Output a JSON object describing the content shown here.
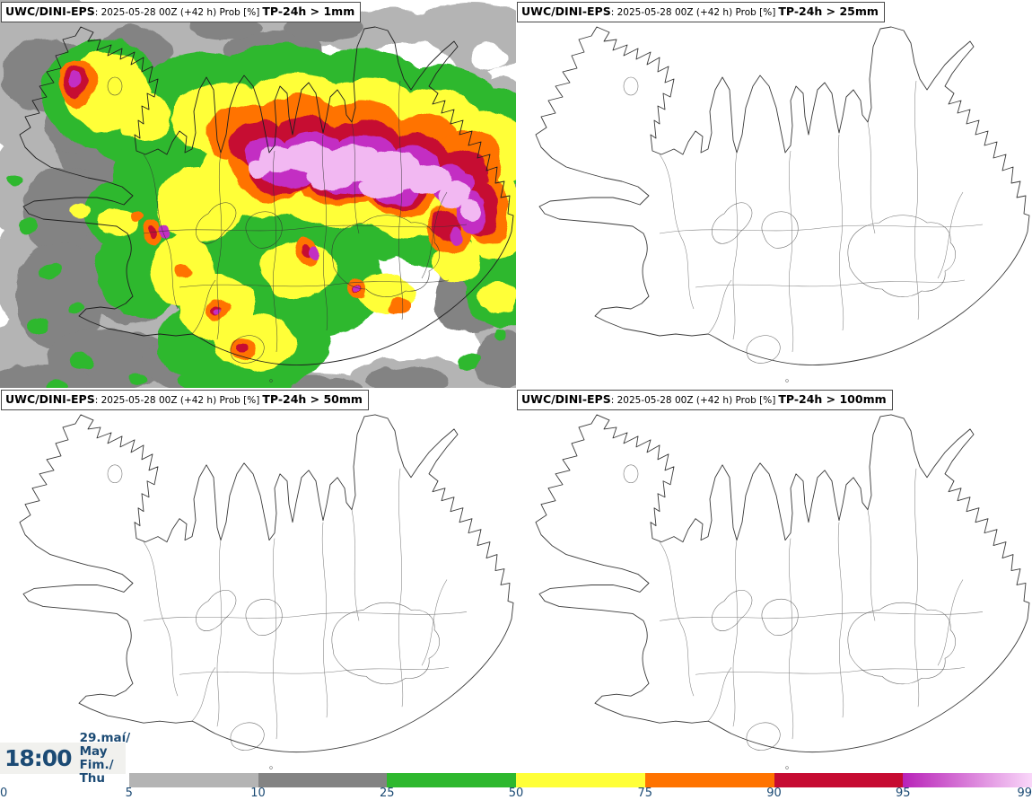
{
  "product": {
    "model": "UWC/DINI-EPS",
    "run": "2025-05-28 00Z",
    "lead_time": "(+42 h)",
    "field": "Prob [%]"
  },
  "panels": [
    {
      "brand": "UWC/DINI-EPS",
      "meta": ": 2025-05-28 00Z (+42 h) Prob [%]",
      "threshold": "TP-24h > 1mm"
    },
    {
      "brand": "UWC/DINI-EPS",
      "meta": ": 2025-05-28 00Z (+42 h) Prob [%]",
      "threshold": "TP-24h > 25mm"
    },
    {
      "brand": "UWC/DINI-EPS",
      "meta": ": 2025-05-28 00Z (+42 h) Prob [%]",
      "threshold": "TP-24h > 50mm"
    },
    {
      "brand": "UWC/DINI-EPS",
      "meta": ": 2025-05-28 00Z (+42 h) Prob [%]",
      "threshold": "TP-24h > 100mm"
    }
  ],
  "footer": {
    "valid_time": "18:00",
    "date_line1": "29.maí/ May",
    "date_line2": "Fim./ Thu"
  },
  "colorbar": {
    "unit": "Prob [%]",
    "ticks": [
      "0",
      "5",
      "10",
      "25",
      "50",
      "75",
      "90",
      "95",
      "99"
    ],
    "segments": [
      {
        "from": "5",
        "to": "10",
        "color": "#b4b4b4"
      },
      {
        "from": "10",
        "to": "25",
        "color": "#838383"
      },
      {
        "from": "25",
        "to": "50",
        "color": "#2eb82e"
      },
      {
        "from": "50",
        "to": "75",
        "color": "#ffff38"
      },
      {
        "from": "75",
        "to": "90",
        "color": "#ff7300"
      },
      {
        "from": "90",
        "to": "95",
        "color": "#c60b32"
      },
      {
        "from": "95",
        "to": "99",
        "color_start": "#b822b8",
        "color_end": "#f9d7f9"
      }
    ]
  },
  "map_palette": {
    "below_5": "#ffffff",
    "p5_10": "#b4b4b4",
    "p10_25": "#838383",
    "p25_50": "#2eb82e",
    "p50_75": "#ffff38",
    "p75_90": "#ff7300",
    "p90_95": "#c60b32",
    "p95_99": "#c32ec3",
    "above_99": "#f2b8f2",
    "text_navy": "#1b4a74"
  }
}
